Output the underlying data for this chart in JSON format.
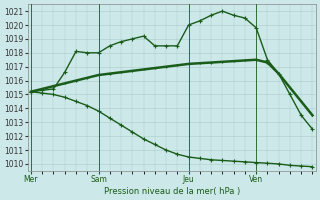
{
  "bg_color": "#cce8e8",
  "grid_color": "#aacccc",
  "line_color": "#1a5c1a",
  "ylim": [
    1009.5,
    1021.5
  ],
  "yticks": [
    1010,
    1011,
    1012,
    1013,
    1014,
    1015,
    1016,
    1017,
    1018,
    1019,
    1020,
    1021
  ],
  "ylabel_fontsize": 5.5,
  "xlabel": "Pression niveau de la mer( hPa )",
  "xtick_labels": [
    "Mer",
    "Sam",
    "Jeu",
    "Ven"
  ],
  "xtick_positions": [
    0,
    6,
    14,
    20
  ],
  "vlines": [
    0,
    6,
    14,
    20
  ],
  "xlim": [
    -0.3,
    25.3
  ],
  "series1_x": [
    0,
    1,
    2,
    3,
    4,
    5,
    6,
    7,
    8,
    9,
    10,
    11,
    12,
    13,
    14,
    15,
    16,
    17,
    18,
    19,
    20,
    21,
    22,
    23,
    24,
    25
  ],
  "series1_y": [
    1015.2,
    1015.3,
    1015.4,
    1016.6,
    1018.1,
    1018.0,
    1018.0,
    1018.5,
    1018.8,
    1019.0,
    1019.2,
    1018.5,
    1018.5,
    1018.5,
    1020.0,
    1020.3,
    1020.7,
    1021.0,
    1020.7,
    1020.5,
    1019.8,
    1017.5,
    1016.5,
    1015.0,
    1013.5,
    1012.5
  ],
  "series2_x": [
    0,
    1,
    2,
    3,
    4,
    5,
    6,
    7,
    8,
    9,
    10,
    11,
    12,
    13,
    14,
    15,
    16,
    17,
    18,
    19,
    20,
    21,
    22,
    23,
    24,
    25
  ],
  "series2_y": [
    1015.2,
    1015.4,
    1015.6,
    1015.8,
    1016.0,
    1016.2,
    1016.4,
    1016.5,
    1016.6,
    1016.7,
    1016.8,
    1016.9,
    1017.0,
    1017.1,
    1017.2,
    1017.25,
    1017.3,
    1017.35,
    1017.4,
    1017.45,
    1017.5,
    1017.3,
    1016.5,
    1015.5,
    1014.5,
    1013.5
  ],
  "series3_x": [
    0,
    1,
    2,
    3,
    4,
    5,
    6,
    7,
    8,
    9,
    10,
    11,
    12,
    13,
    14,
    15,
    16,
    17,
    18,
    19,
    20,
    21,
    22,
    23,
    24,
    25
  ],
  "series3_y": [
    1015.2,
    1015.1,
    1015.0,
    1014.8,
    1014.5,
    1014.2,
    1013.8,
    1013.3,
    1012.8,
    1012.3,
    1011.8,
    1011.4,
    1011.0,
    1010.7,
    1010.5,
    1010.4,
    1010.3,
    1010.25,
    1010.2,
    1010.15,
    1010.1,
    1010.05,
    1010.0,
    1009.9,
    1009.85,
    1009.8
  ],
  "marker": "+",
  "marker_size": 3.5,
  "linewidth1": 1.0,
  "linewidth2": 1.8,
  "linewidth3": 1.0
}
